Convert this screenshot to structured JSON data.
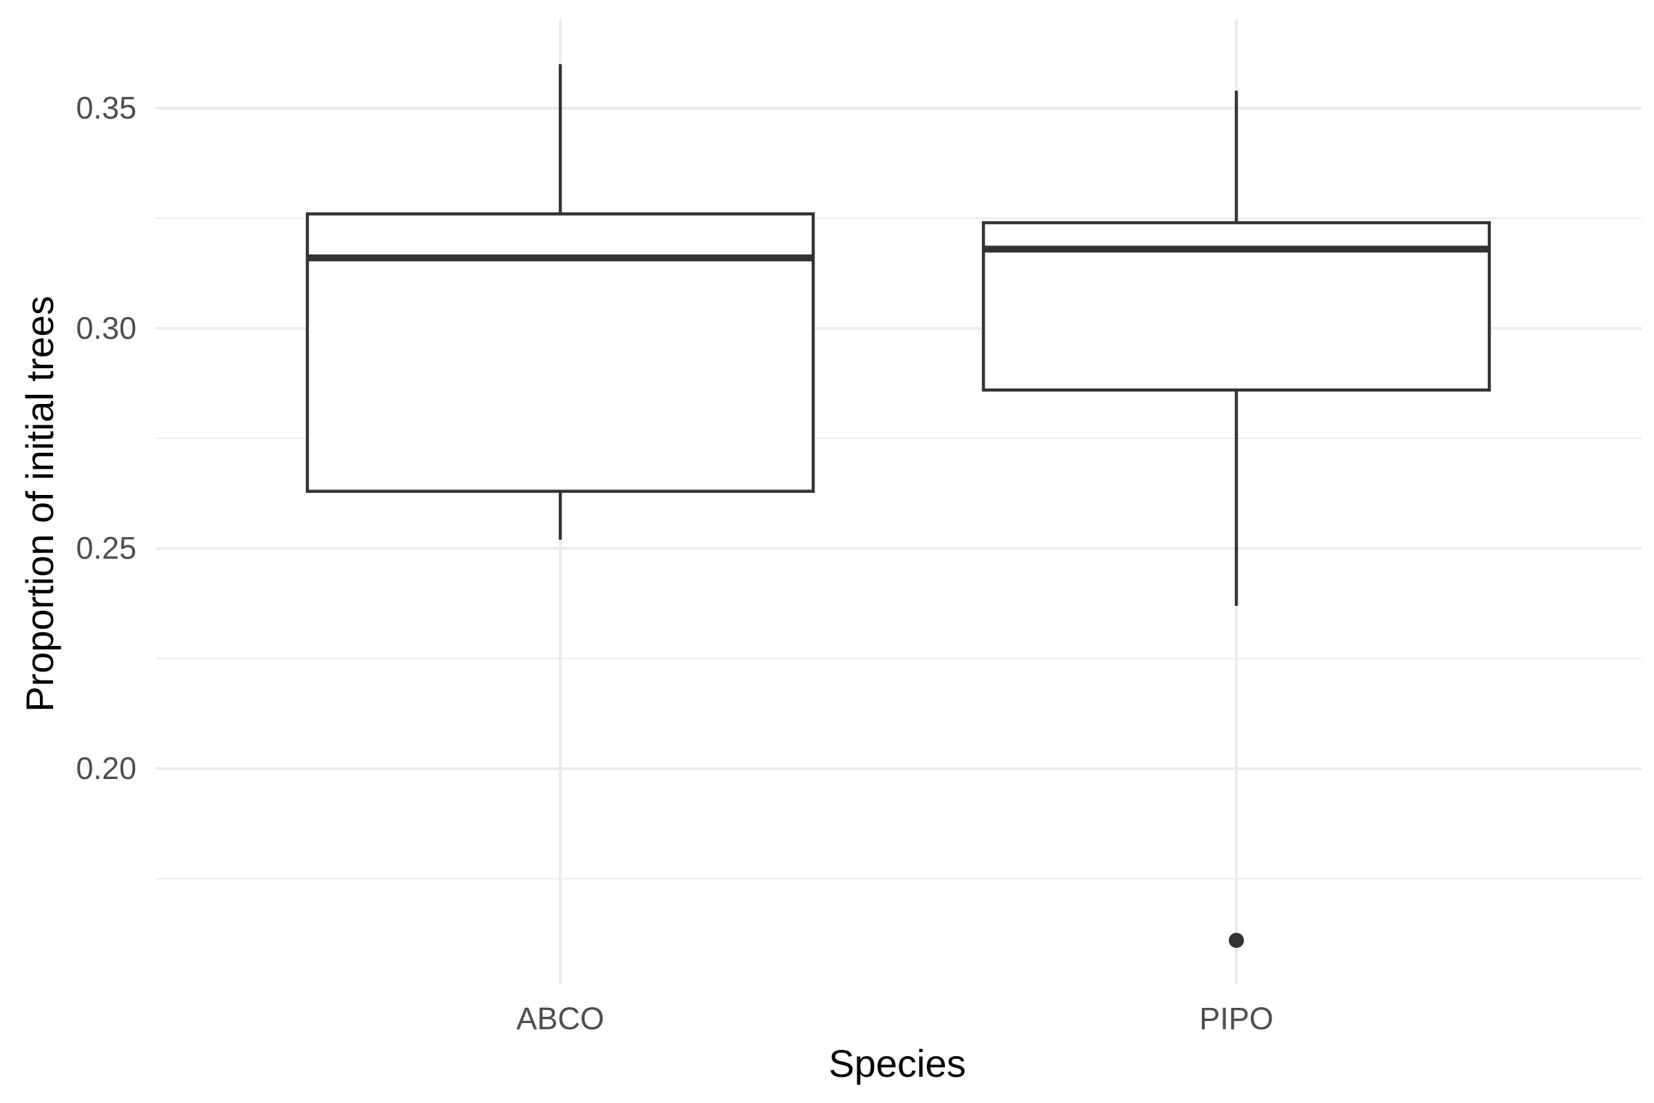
{
  "chart_data": {
    "type": "box",
    "xlabel": "Species",
    "ylabel": "Proportion of initial trees",
    "categories": [
      "ABCO",
      "PIPO"
    ],
    "ylim": [
      0.16,
      0.37
    ],
    "y_ticks": [
      0.2,
      0.25,
      0.3,
      0.35
    ],
    "y_tick_labels": [
      "0.20",
      "0.25",
      "0.30",
      "0.35"
    ],
    "grid": true,
    "boxes": [
      {
        "category": "ABCO",
        "whisker_low": 0.252,
        "q1": 0.263,
        "median": 0.316,
        "q3": 0.326,
        "whisker_high": 0.36,
        "outliers": []
      },
      {
        "category": "PIPO",
        "whisker_low": 0.237,
        "q1": 0.286,
        "median": 0.318,
        "q3": 0.324,
        "whisker_high": 0.354,
        "outliers": [
          0.161
        ]
      }
    ],
    "colors": {
      "box_stroke": "#333333",
      "grid": "#ebebeb",
      "tick_text": "#4d4d4d"
    }
  }
}
